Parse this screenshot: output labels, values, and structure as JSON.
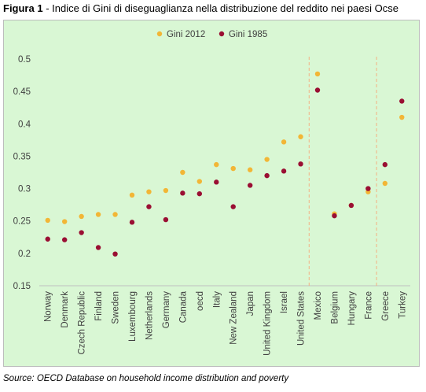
{
  "title": {
    "prefix": "Figura 1",
    "text": " - Indice di Gini di diseguaglianza nella distribuzione del reddito nei paesi Ocse"
  },
  "source": "Source: OECD Database on household income distribution and poverty",
  "colors": {
    "gini2012": "#f2b636",
    "gini1985": "#9a0f33",
    "background": "#d9f7d4",
    "separator": "#f4b183",
    "axis": "#bfbfbf"
  },
  "chart_data": {
    "type": "scatter",
    "categories": [
      "Norway",
      "Denmark",
      "Czech Republic",
      "Finland",
      "Sweden",
      "Luxembourg",
      "Netherlands",
      "Germany",
      "Canada",
      "oecd",
      "Italy",
      "New Zealand",
      "Japan",
      "United Kingdom",
      "Israel",
      "United States",
      "Mexico",
      "Belgium",
      "Hungary",
      "France",
      "Greece",
      "Turkey"
    ],
    "series": [
      {
        "name": "Gini 2012",
        "values": [
          0.251,
          0.249,
          0.257,
          0.26,
          0.26,
          0.29,
          0.295,
          0.297,
          0.325,
          0.311,
          0.337,
          0.331,
          0.329,
          0.345,
          0.372,
          0.38,
          0.477,
          0.261,
          0.274,
          0.295,
          0.308,
          0.41
        ]
      },
      {
        "name": "Gini 1985",
        "values": [
          0.222,
          0.221,
          0.232,
          0.209,
          0.199,
          0.248,
          0.272,
          0.252,
          0.293,
          0.292,
          0.31,
          0.272,
          0.305,
          0.32,
          0.327,
          0.338,
          0.452,
          0.258,
          0.274,
          0.3,
          0.337,
          0.435
        ]
      }
    ],
    "ylim": [
      0.15,
      0.5
    ],
    "yticks": [
      "0.15",
      "0.2",
      "0.25",
      "0.3",
      "0.35",
      "0.4",
      "0.45",
      "0.5"
    ],
    "separators_after": [
      "United States",
      "France"
    ],
    "legend_position": "top-center",
    "grid": false
  }
}
